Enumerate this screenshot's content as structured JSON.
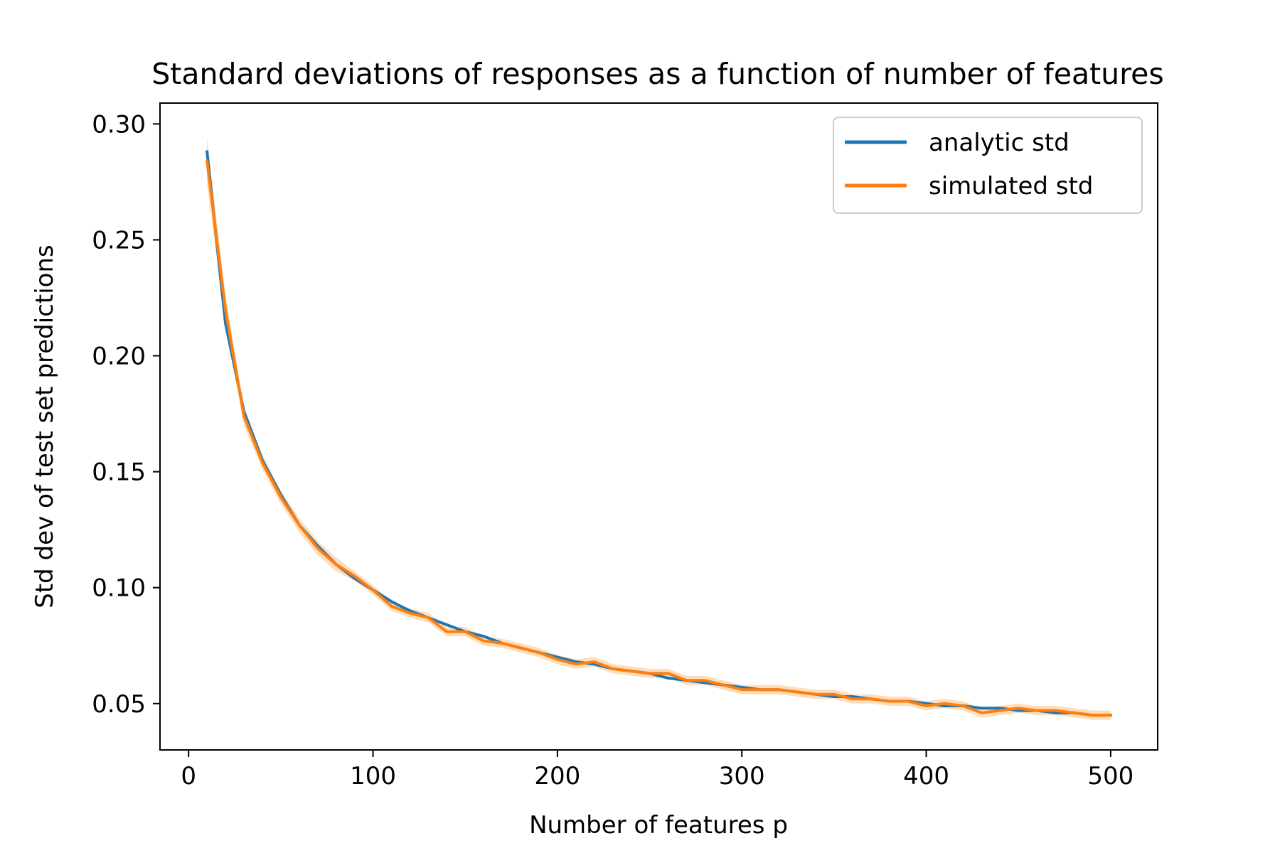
{
  "chart_data": {
    "type": "line",
    "title": "Standard deviations of responses as a function of number of features",
    "xlabel": "Number of features p",
    "ylabel": "Std dev of test set predictions",
    "xlim": [
      -15.5,
      525.5
    ],
    "ylim": [
      0.03,
      0.309
    ],
    "x_ticks": [
      0,
      100,
      200,
      300,
      400,
      500
    ],
    "x_tick_labels": [
      "0",
      "100",
      "200",
      "300",
      "400",
      "500"
    ],
    "y_ticks": [
      0.05,
      0.1,
      0.15,
      0.2,
      0.25,
      0.3
    ],
    "y_tick_labels": [
      "0.05",
      "0.10",
      "0.15",
      "0.20",
      "0.25",
      "0.30"
    ],
    "grid": false,
    "legend_position": "top-right",
    "x": [
      10,
      20,
      30,
      40,
      50,
      60,
      70,
      80,
      90,
      100,
      110,
      120,
      130,
      140,
      150,
      160,
      170,
      180,
      190,
      200,
      210,
      220,
      230,
      240,
      250,
      260,
      270,
      280,
      290,
      300,
      310,
      320,
      330,
      340,
      350,
      360,
      370,
      380,
      390,
      400,
      410,
      420,
      430,
      440,
      450,
      460,
      470,
      480,
      490,
      500
    ],
    "series": [
      {
        "name": "analytic std",
        "color": "#1f77b4",
        "values": [
          0.288,
          0.214,
          0.176,
          0.155,
          0.14,
          0.127,
          0.118,
          0.11,
          0.104,
          0.099,
          0.094,
          0.09,
          0.087,
          0.084,
          0.081,
          0.079,
          0.076,
          0.074,
          0.072,
          0.07,
          0.068,
          0.067,
          0.065,
          0.064,
          0.063,
          0.061,
          0.06,
          0.059,
          0.058,
          0.057,
          0.056,
          0.056,
          0.055,
          0.054,
          0.053,
          0.053,
          0.052,
          0.051,
          0.051,
          0.05,
          0.049,
          0.049,
          0.048,
          0.048,
          0.047,
          0.047,
          0.046,
          0.046,
          0.045,
          0.045
        ]
      },
      {
        "name": "simulated std",
        "color": "#ff7f0e",
        "band_color": "#ffbb78",
        "values": [
          0.284,
          0.22,
          0.174,
          0.154,
          0.139,
          0.127,
          0.117,
          0.11,
          0.105,
          0.099,
          0.092,
          0.089,
          0.087,
          0.081,
          0.081,
          0.077,
          0.076,
          0.074,
          0.072,
          0.069,
          0.067,
          0.068,
          0.065,
          0.064,
          0.063,
          0.063,
          0.06,
          0.06,
          0.058,
          0.056,
          0.056,
          0.056,
          0.055,
          0.054,
          0.054,
          0.052,
          0.052,
          0.051,
          0.051,
          0.049,
          0.05,
          0.049,
          0.046,
          0.047,
          0.048,
          0.047,
          0.047,
          0.046,
          0.045,
          0.045
        ],
        "band_halfwidth": [
          0.01,
          0.006,
          0.004,
          0.003,
          0.003,
          0.003,
          0.003,
          0.003,
          0.002,
          0.002,
          0.002,
          0.002,
          0.002,
          0.002,
          0.002,
          0.002,
          0.002,
          0.002,
          0.002,
          0.002,
          0.002,
          0.002,
          0.002,
          0.002,
          0.002,
          0.002,
          0.002,
          0.002,
          0.002,
          0.002,
          0.002,
          0.002,
          0.002,
          0.002,
          0.002,
          0.002,
          0.002,
          0.002,
          0.002,
          0.002,
          0.002,
          0.002,
          0.002,
          0.002,
          0.002,
          0.002,
          0.002,
          0.002,
          0.002,
          0.002
        ]
      }
    ]
  }
}
